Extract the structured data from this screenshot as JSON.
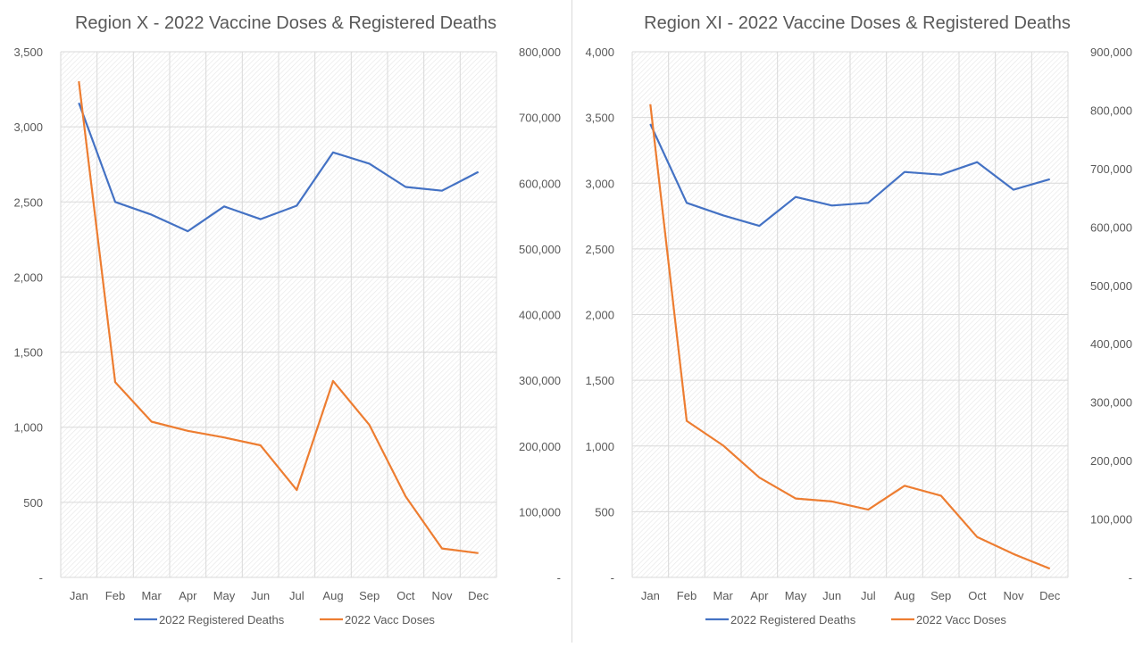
{
  "colors": {
    "deaths": "#4472C4",
    "doses": "#ED7D31",
    "grid": "#d9d9d9",
    "text": "#595959",
    "title": "#595959",
    "hatch": "#e6e6e6"
  },
  "chart_data": [
    {
      "type": "line",
      "title": "Region X - 2022 Vaccine Doses & Registered Deaths",
      "categories": [
        "Jan",
        "Feb",
        "Mar",
        "Apr",
        "May",
        "Jun",
        "Jul",
        "Aug",
        "Sep",
        "Oct",
        "Nov",
        "Dec"
      ],
      "y_left": {
        "min": 0,
        "max": 3500,
        "step": 500,
        "tick_labels": [
          "-",
          "500",
          "1,000",
          "1,500",
          "2,000",
          "2,500",
          "3,000",
          "3,500"
        ]
      },
      "y_right": {
        "min": 0,
        "max": 800000,
        "step": 100000,
        "tick_labels": [
          "-",
          "100,000",
          "200,000",
          "300,000",
          "400,000",
          "500,000",
          "600,000",
          "700,000",
          "800,000"
        ]
      },
      "series": [
        {
          "name": "2022 Registered Deaths",
          "axis": "left",
          "color": "#4472C4",
          "values": [
            3160,
            2500,
            2415,
            2305,
            2470,
            2385,
            2475,
            2830,
            2755,
            2600,
            2575,
            2700
          ]
        },
        {
          "name": "2022 Vacc Doses",
          "axis": "right",
          "color": "#ED7D31",
          "values": [
            755000,
            297000,
            237000,
            223000,
            213000,
            201000,
            133000,
            299000,
            232000,
            123000,
            44000,
            37000
          ]
        }
      ],
      "legend": "bottom",
      "grid": true
    },
    {
      "type": "line",
      "title": "Region XI - 2022 Vaccine Doses & Registered Deaths",
      "categories": [
        "Jan",
        "Feb",
        "Mar",
        "Apr",
        "May",
        "Jun",
        "Jul",
        "Aug",
        "Sep",
        "Oct",
        "Nov",
        "Dec"
      ],
      "y_left": {
        "min": 0,
        "max": 4000,
        "step": 500,
        "tick_labels": [
          "-",
          "500",
          "1,000",
          "1,500",
          "2,000",
          "2,500",
          "3,000",
          "3,500",
          "4,000"
        ]
      },
      "y_right": {
        "min": 0,
        "max": 900000,
        "step": 100000,
        "tick_labels": [
          "-",
          "100,000",
          "200,000",
          "300,000",
          "400,000",
          "500,000",
          "600,000",
          "700,000",
          "800,000",
          "900,000"
        ]
      },
      "series": [
        {
          "name": "2022 Registered Deaths",
          "axis": "left",
          "color": "#4472C4",
          "values": [
            3450,
            2850,
            2755,
            2675,
            2895,
            2830,
            2850,
            3085,
            3065,
            3160,
            2950,
            3030
          ]
        },
        {
          "name": "2022 Vacc Doses",
          "axis": "right",
          "color": "#ED7D31",
          "values": [
            810000,
            268000,
            226000,
            171000,
            135000,
            130000,
            116000,
            157000,
            140000,
            69000,
            40000,
            15000
          ]
        }
      ],
      "legend": "bottom",
      "grid": true
    }
  ]
}
